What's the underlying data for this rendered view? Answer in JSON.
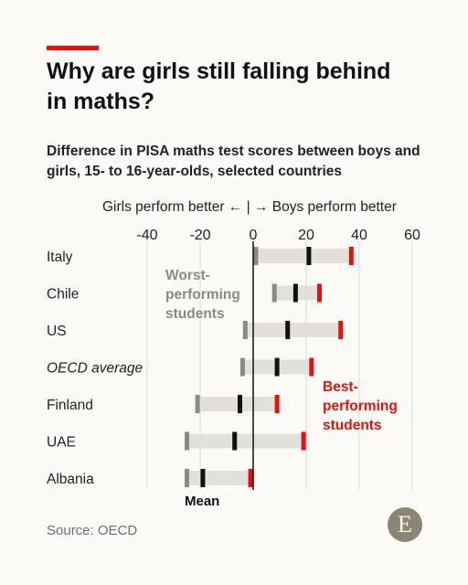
{
  "title": "Why are girls still falling behind in maths?",
  "subtitle": "Difference in PISA maths test scores between boys and girls, 15- to 16-year-olds, selected countries",
  "direction_label": "Girls perform better ← | → Boys perform better",
  "source": "Source: OECD",
  "logo_letter": "E",
  "colors": {
    "worst": "#8c8a7e",
    "mean": "#111111",
    "best": "#e3120b",
    "range_band": "#e2e0d8",
    "accent": "#e3120b"
  },
  "annotations": {
    "worst": [
      "Worst-",
      "performing",
      "students"
    ],
    "best": [
      "Best-",
      "performing",
      "students"
    ],
    "mean": "Mean"
  },
  "chart_data": {
    "type": "dot-range",
    "xlim": [
      -40,
      60
    ],
    "xticks": [
      -40,
      -20,
      0,
      20,
      40,
      60
    ],
    "categories": [
      "Italy",
      "Chile",
      "US",
      "OECD average",
      "Finland",
      "UAE",
      "Albania"
    ],
    "italic_categories": [
      "OECD average"
    ],
    "series": [
      {
        "name": "Worst-performing students",
        "values": [
          1,
          8,
          -3,
          -4,
          -21,
          -25,
          -25
        ]
      },
      {
        "name": "Mean",
        "values": [
          21,
          16,
          13,
          9,
          -5,
          -7,
          -19
        ]
      },
      {
        "name": "Best-performing students",
        "values": [
          37,
          25,
          33,
          22,
          9,
          19,
          -1
        ]
      }
    ],
    "grid": true
  }
}
